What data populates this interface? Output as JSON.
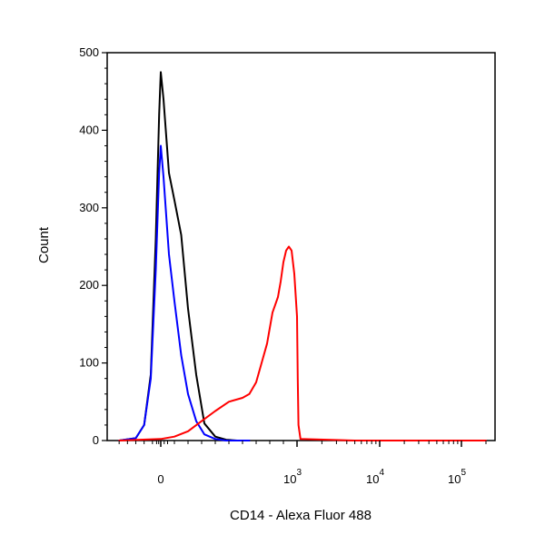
{
  "chart_data": {
    "type": "line",
    "title": "",
    "xlabel": "CD14 - Alexa Fluor 488",
    "ylabel": "Count",
    "x_scale": "biexponential (logicle)",
    "x_tick_labels": [
      {
        "base": "0",
        "exp": ""
      },
      {
        "base": "10",
        "exp": "3"
      },
      {
        "base": "10",
        "exp": "4"
      },
      {
        "base": "10",
        "exp": "5"
      }
    ],
    "y_ticks": [
      0,
      100,
      200,
      300,
      400,
      500
    ],
    "ylim": [
      0,
      500
    ],
    "grid": false,
    "legend": "none",
    "series": [
      {
        "color": "#000000",
        "x": [
          -500,
          -300,
          -200,
          -120,
          -60,
          -20,
          0,
          20,
          60,
          100,
          150,
          200,
          260,
          320,
          400,
          480,
          560,
          650
        ],
        "y": [
          0,
          3,
          20,
          85,
          260,
          420,
          475,
          440,
          345,
          310,
          265,
          170,
          85,
          22,
          5,
          1,
          0,
          0
        ]
      },
      {
        "color": "#0000ff",
        "x": [
          -500,
          -300,
          -200,
          -120,
          -60,
          -20,
          0,
          20,
          60,
          100,
          150,
          200,
          260,
          320,
          400,
          480,
          560,
          650
        ],
        "y": [
          0,
          3,
          20,
          80,
          220,
          345,
          380,
          340,
          240,
          180,
          110,
          60,
          25,
          8,
          2,
          0,
          0,
          0
        ]
      },
      {
        "color": "#ff0000",
        "x": [
          -500,
          0,
          100,
          200,
          300,
          400,
          500,
          600,
          650,
          700,
          780,
          800,
          820,
          840,
          860,
          880,
          900,
          920,
          940,
          960,
          980,
          1000,
          1020,
          1040,
          1100,
          5000,
          200000
        ],
        "y": [
          0,
          2,
          5,
          12,
          25,
          38,
          50,
          55,
          60,
          75,
          125,
          145,
          165,
          175,
          185,
          205,
          230,
          245,
          250,
          245,
          215,
          160,
          80,
          20,
          2,
          0,
          0
        ]
      }
    ]
  }
}
